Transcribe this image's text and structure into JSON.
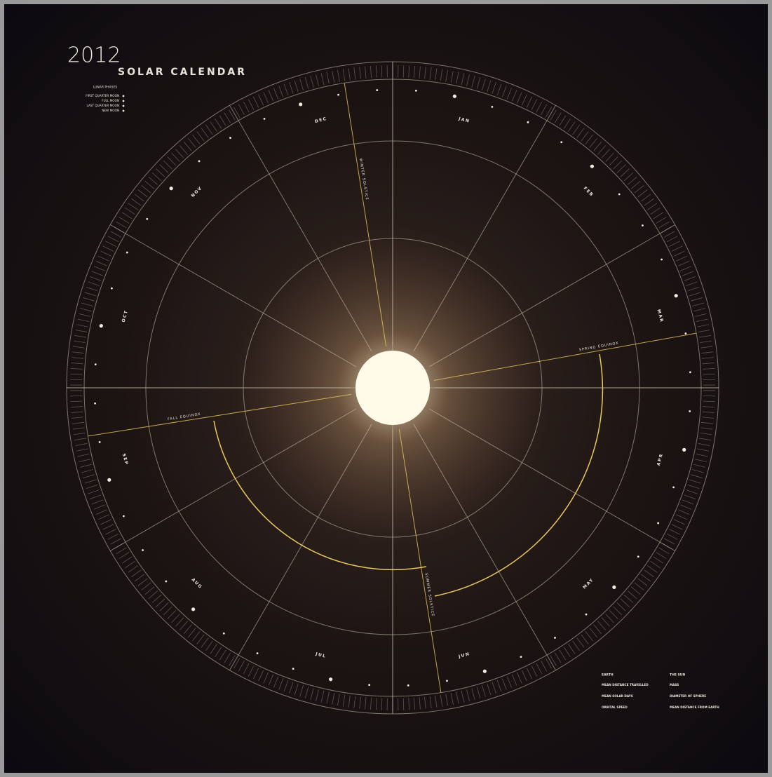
{
  "header": {
    "year": "2012",
    "title": "SOLAR CALENDAR"
  },
  "legend": {
    "title": "LUNAR PHASES",
    "items": [
      "FIRST QUARTER MOON",
      "FULL MOON",
      "LAST QUARTER MOON",
      "NEW MOON"
    ]
  },
  "months": [
    "JAN",
    "FEB",
    "MAR",
    "APR",
    "MAY",
    "JUN",
    "JUL",
    "AUG",
    "SEP",
    "OCT",
    "NOV",
    "DEC"
  ],
  "events": [
    "SPRING EQUINOX",
    "SUMMER SOLSTICE",
    "FALL EQUINOX",
    "WINTER SOLSTICE"
  ],
  "facts": {
    "earth": {
      "title": "EARTH",
      "items": [
        "MEAN DISTANCE TRAVELLED",
        "MEAN SOLAR DAYS",
        "ORBITAL SPEED"
      ]
    },
    "sun": {
      "title": "THE SUN",
      "items": [
        "MASS",
        "DIAMETER OF SPHERE",
        "MEAN DISTANCE FROM EARTH"
      ]
    }
  }
}
